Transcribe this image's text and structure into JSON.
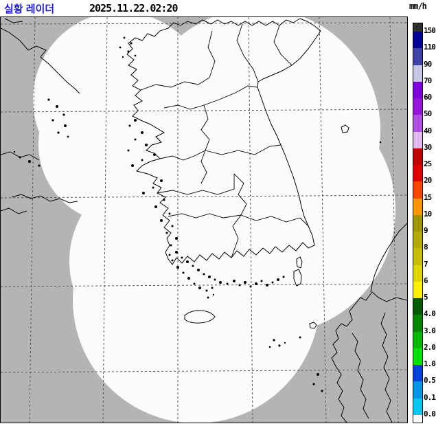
{
  "header": {
    "title": "실황 레이더",
    "title_color": "#2020E0",
    "timestamp": "2025.11.22.02:20",
    "unit_label": "mm/h"
  },
  "legend": {
    "boundary_labels": [
      "150",
      "110",
      "90",
      "70",
      "60",
      "50",
      "40",
      "30",
      "25",
      "20",
      "15",
      "10",
      "9",
      "8",
      "7",
      "6",
      "5",
      "4.0",
      "3.0",
      "2.0",
      "1.0",
      "0.5",
      "0.1",
      "0.0"
    ],
    "segment_colors_top_to_bottom": [
      "#2F2F2F",
      "#000096",
      "#4141AA",
      "#C8C8E6",
      "#7D00DC",
      "#9614DC",
      "#AF50E1",
      "#E1B9F0",
      "#BE0000",
      "#E10000",
      "#FF4600",
      "#FF9600",
      "#A09600",
      "#B4AA00",
      "#C8BE00",
      "#E1D700",
      "#FFF000",
      "#005A00",
      "#008700",
      "#00B900",
      "#00E100",
      "#0041DC",
      "#0096E6",
      "#00C8F0",
      "#FFFFFF"
    ]
  },
  "map": {
    "sea_color": "#B4B4B4",
    "coverage_color": "#FCFCFC",
    "coastline_color": "#000000",
    "graticule_color": "#555555"
  }
}
